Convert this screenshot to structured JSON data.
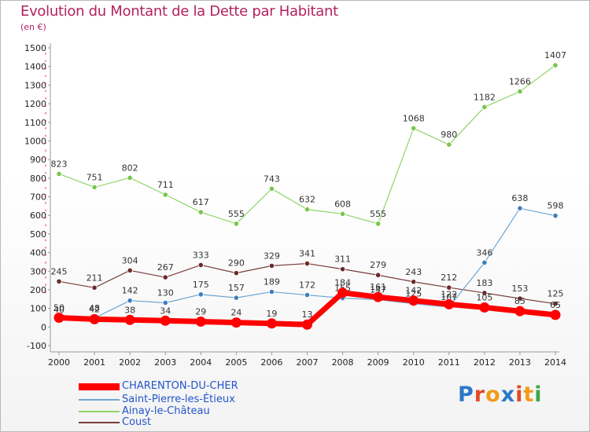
{
  "title": "Evolution du Montant de la Dette par Habitant",
  "unit": "(en €)",
  "logo": {
    "text": "Proxiti",
    "colors": [
      "#2b79c8",
      "#e24b27",
      "#f39a1a",
      "#2b79c8",
      "#e24b27",
      "#f39a1a",
      "#3aa843"
    ]
  },
  "chart_data": {
    "type": "line",
    "x": [
      2000,
      2001,
      2002,
      2003,
      2004,
      2005,
      2006,
      2007,
      2008,
      2009,
      2010,
      2011,
      2012,
      2013,
      2014
    ],
    "ylim": [
      -100,
      1500
    ],
    "yticks": [
      -100,
      0,
      100,
      200,
      300,
      400,
      500,
      600,
      700,
      800,
      900,
      1000,
      1100,
      1200,
      1300,
      1400,
      1500
    ],
    "grid": false,
    "legend_position": "bottom-left",
    "series": [
      {
        "name": "Ainay-le-Château",
        "color": "#8fd468",
        "marker": "#79c64b",
        "width": 1.2,
        "values": [
          823,
          751,
          802,
          711,
          617,
          555,
          743,
          632,
          608,
          555,
          1068,
          980,
          1182,
          1266,
          1407
        ],
        "labels": [
          "823",
          "751",
          "802",
          "711",
          "617",
          "555",
          "743",
          "632",
          "608",
          "555",
          "1068",
          "980",
          "1182",
          "1266",
          "1407"
        ]
      },
      {
        "name": "Coust",
        "color": "#7a3b3b",
        "marker": "#6b2a2a",
        "width": 1.2,
        "values": [
          245,
          211,
          304,
          267,
          333,
          290,
          329,
          341,
          311,
          279,
          243,
          212,
          183,
          153,
          125
        ],
        "labels": [
          "245",
          "211",
          "304",
          "267",
          "333",
          "290",
          "329",
          "341",
          "311",
          "279",
          "243",
          "212",
          "183",
          "153",
          "125"
        ]
      },
      {
        "name": "Saint-Pierre-les-Étieux",
        "color": "#6ea6d3",
        "marker": "#3d7fbd",
        "width": 1.2,
        "values": [
          40,
          48,
          142,
          130,
          175,
          157,
          189,
          172,
          155,
          147,
          125,
          107,
          346,
          638,
          598
        ],
        "labels": [
          "40",
          "48",
          "142",
          "130",
          "175",
          "157",
          "189",
          "172",
          "155",
          "147",
          "125",
          "107",
          "346",
          "638",
          "598"
        ]
      },
      {
        "name": "CHARENTON-DU-CHER",
        "color": "#ff0000",
        "marker": "#ff0000",
        "width": 7,
        "values": [
          50,
          42,
          38,
          34,
          29,
          24,
          19,
          13,
          184,
          161,
          142,
          122,
          105,
          85,
          65
        ],
        "labels": [
          "50",
          "42",
          "38",
          "34",
          "29",
          "24",
          "19",
          "13",
          "184",
          "161",
          "142",
          "122",
          "105",
          "85",
          "65"
        ]
      }
    ]
  },
  "legend": [
    {
      "label": "CHARENTON-DU-CHER",
      "color": "#ff0000",
      "text_color": "#2255cc",
      "thick": true
    },
    {
      "label": "Saint-Pierre-les-Étieux",
      "color": "#6ea6d3",
      "text_color": "#2255cc",
      "thick": false
    },
    {
      "label": "Ainay-le-Château",
      "color": "#8fd468",
      "text_color": "#2255cc",
      "thick": false
    },
    {
      "label": "Coust",
      "color": "#7a3b3b",
      "text_color": "#2255cc",
      "thick": false
    }
  ]
}
